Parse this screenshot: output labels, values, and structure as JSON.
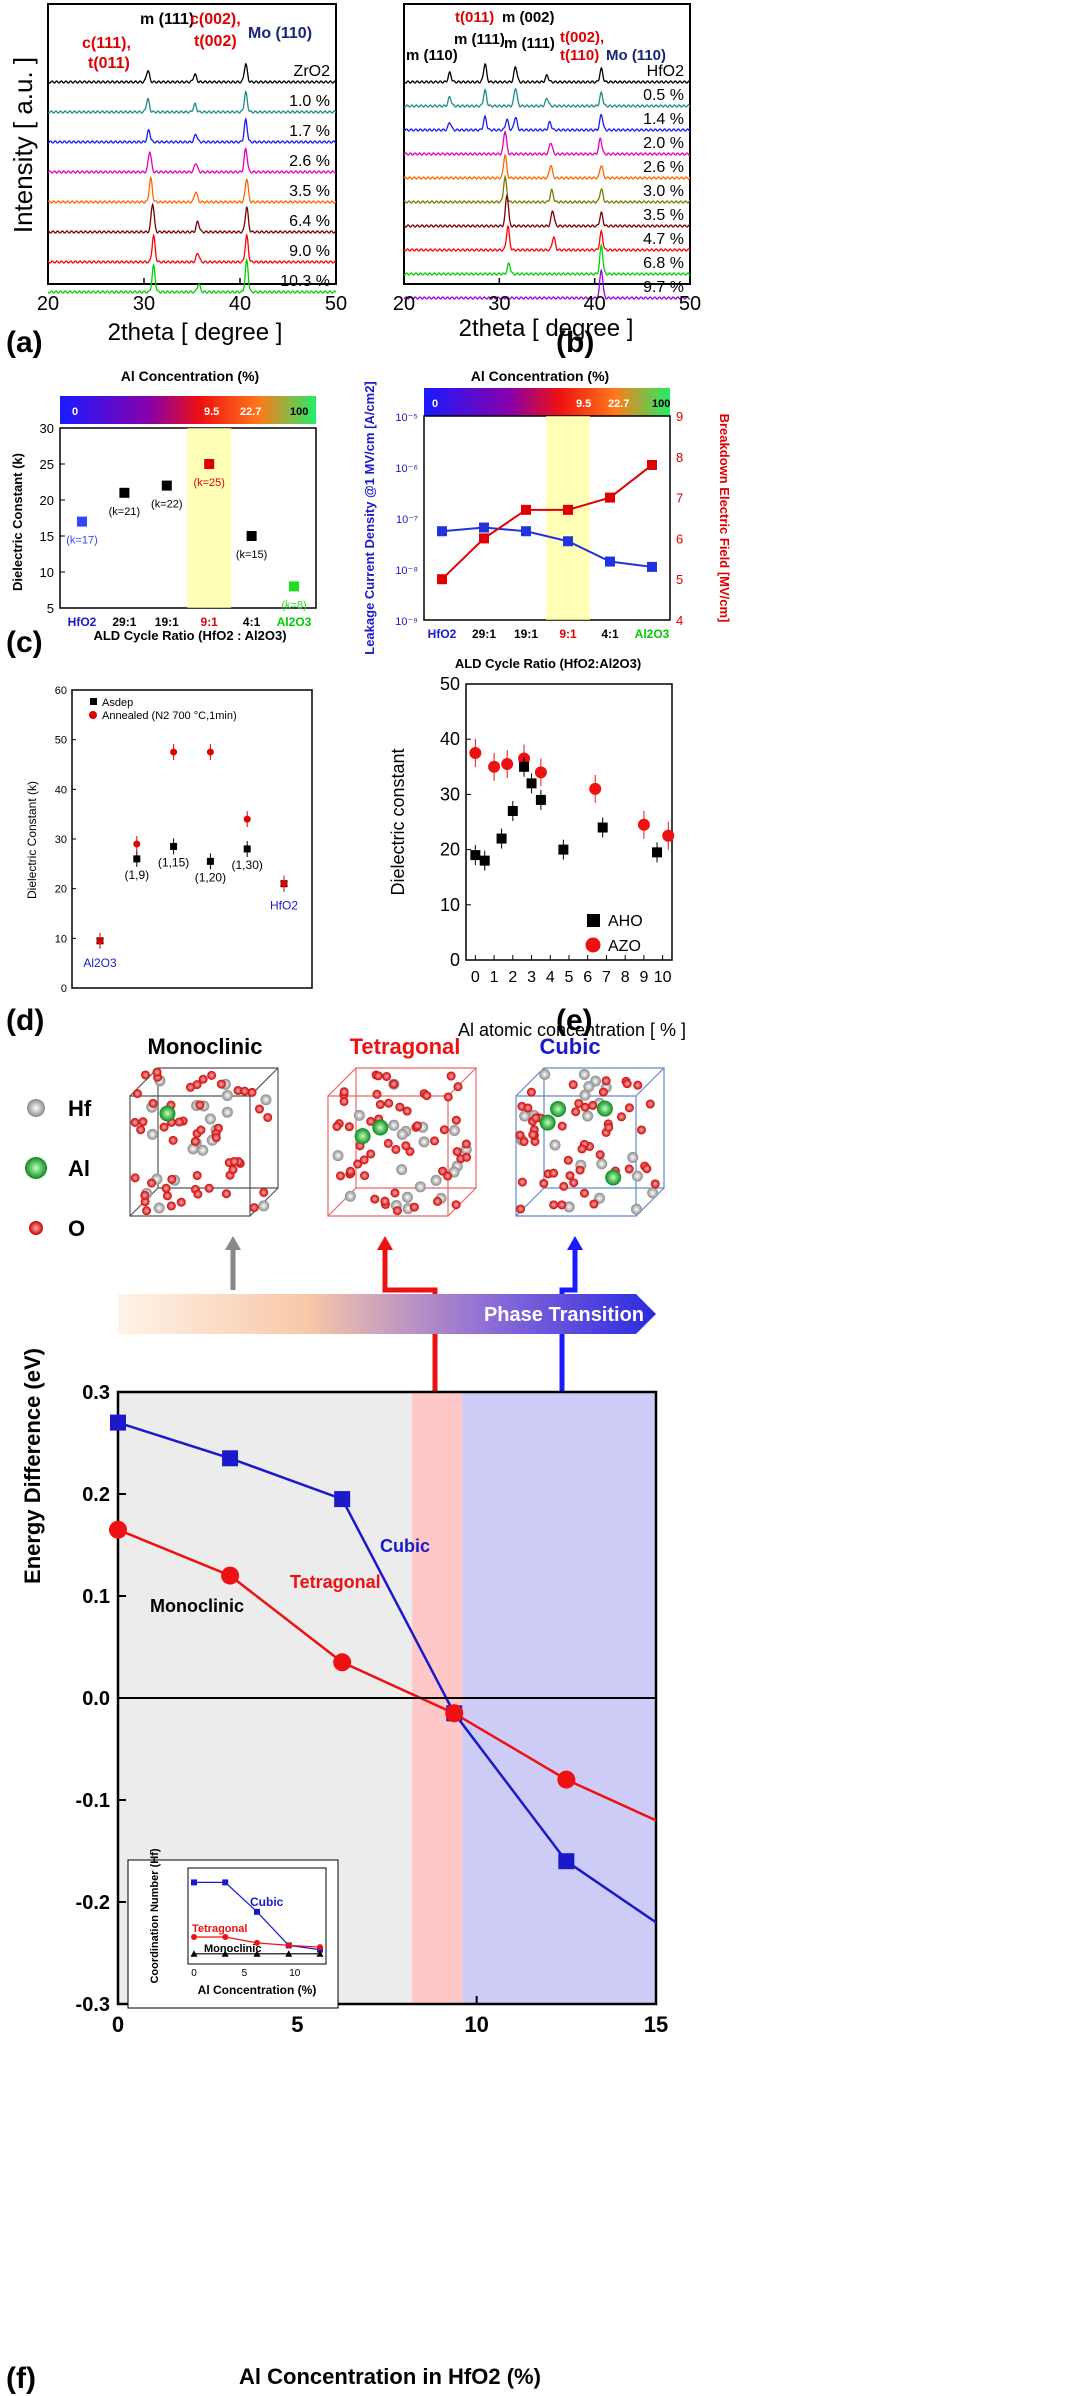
{
  "panel_labels": [
    "(a)",
    "(b)",
    "(c)",
    "(d)",
    "(e)",
    "(f)"
  ],
  "chart_data": [
    {
      "id": "a",
      "type": "line",
      "xlabel": "2theta [ degree ]",
      "ylabel": "Intensity [ a.u. ]",
      "xlim": [
        20,
        50
      ],
      "xticks": [
        20,
        30,
        40,
        50
      ],
      "series": [
        {
          "name": "ZrO2",
          "color": "#000000",
          "peaks": [
            [
              30.4,
              0.45
            ],
            [
              35.3,
              0.3
            ],
            [
              40.6,
              0.7
            ]
          ]
        },
        {
          "name": "1.0 %",
          "color": "#1f8a8a",
          "peaks": [
            [
              30.4,
              0.5
            ],
            [
              35.3,
              0.3
            ],
            [
              40.6,
              0.75
            ]
          ]
        },
        {
          "name": "1.7 %",
          "color": "#1a1aff",
          "peaks": [
            [
              30.5,
              0.45
            ],
            [
              35.4,
              0.3
            ],
            [
              40.6,
              0.85
            ]
          ]
        },
        {
          "name": "2.6 %",
          "color": "#e000c0",
          "peaks": [
            [
              30.6,
              0.8
            ],
            [
              35.4,
              0.35
            ],
            [
              40.6,
              0.9
            ]
          ]
        },
        {
          "name": "3.5 %",
          "color": "#ff6600",
          "peaks": [
            [
              30.7,
              0.9
            ],
            [
              35.4,
              0.4
            ],
            [
              40.7,
              0.9
            ]
          ]
        },
        {
          "name": "6.4 %",
          "color": "#7a0000",
          "peaks": [
            [
              30.9,
              1.1
            ],
            [
              35.6,
              0.4
            ],
            [
              40.7,
              0.95
            ]
          ]
        },
        {
          "name": "9.0 %",
          "color": "#ff0000",
          "peaks": [
            [
              31.0,
              1.0
            ],
            [
              35.6,
              0.35
            ],
            [
              40.7,
              1.0
            ]
          ]
        },
        {
          "name": "10.3 %",
          "color": "#00d000",
          "peaks": [
            [
              31.0,
              1.0
            ],
            [
              35.7,
              0.3
            ],
            [
              40.7,
              1.2
            ]
          ]
        }
      ],
      "annotations": [
        {
          "text": "m (111)",
          "color": "#000000"
        },
        {
          "text": "c(002),",
          "color": "#e00000"
        },
        {
          "text": "t(002)",
          "color": "#e00000"
        },
        {
          "text": "c(111),",
          "color": "#e00000"
        },
        {
          "text": "t(011)",
          "color": "#e00000"
        },
        {
          "text": "Mo (110)",
          "color": "#1a237e"
        }
      ]
    },
    {
      "id": "b",
      "type": "line",
      "xlabel": "2theta [ degree ]",
      "ylabel": "",
      "xlim": [
        20,
        50
      ],
      "xticks": [
        20,
        30,
        40,
        50
      ],
      "series": [
        {
          "name": "HfO2",
          "color": "#000000",
          "peaks": [
            [
              24.8,
              0.35
            ],
            [
              28.5,
              0.7
            ],
            [
              31.7,
              0.6
            ],
            [
              35.0,
              0.25
            ],
            [
              40.7,
              0.5
            ]
          ]
        },
        {
          "name": "0.5 %",
          "color": "#1f8a8a",
          "peaks": [
            [
              24.8,
              0.35
            ],
            [
              28.5,
              0.6
            ],
            [
              31.7,
              0.7
            ],
            [
              35.0,
              0.3
            ],
            [
              40.7,
              0.5
            ]
          ]
        },
        {
          "name": "1.4 %",
          "color": "#1a1aff",
          "peaks": [
            [
              24.8,
              0.3
            ],
            [
              28.5,
              0.5
            ],
            [
              30.8,
              0.4
            ],
            [
              31.7,
              0.5
            ],
            [
              35.3,
              0.3
            ],
            [
              40.7,
              0.6
            ]
          ]
        },
        {
          "name": "2.0 %",
          "color": "#e000c0",
          "peaks": [
            [
              30.6,
              0.9
            ],
            [
              35.4,
              0.45
            ],
            [
              40.6,
              0.6
            ]
          ]
        },
        {
          "name": "2.6 %",
          "color": "#ff6600",
          "peaks": [
            [
              30.6,
              0.9
            ],
            [
              35.4,
              0.5
            ],
            [
              40.7,
              0.5
            ]
          ]
        },
        {
          "name": "3.0 %",
          "color": "#7a7a00",
          "peaks": [
            [
              30.6,
              0.95
            ],
            [
              35.5,
              0.45
            ],
            [
              40.7,
              0.5
            ]
          ]
        },
        {
          "name": "3.5 %",
          "color": "#7a0000",
          "peaks": [
            [
              30.8,
              1.2
            ],
            [
              35.6,
              0.6
            ],
            [
              40.7,
              0.5
            ]
          ]
        },
        {
          "name": "4.7 %",
          "color": "#ff0000",
          "peaks": [
            [
              30.9,
              0.9
            ],
            [
              35.7,
              0.5
            ],
            [
              40.7,
              0.7
            ]
          ]
        },
        {
          "name": "6.8 %",
          "color": "#00d000",
          "peaks": [
            [
              31.0,
              0.4
            ],
            [
              40.7,
              1.1
            ]
          ]
        },
        {
          "name": "9.7 %",
          "color": "#a000e0",
          "peaks": [
            [
              40.7,
              1.1
            ]
          ]
        }
      ],
      "annotations": [
        {
          "text": "t(011)",
          "color": "#e00000"
        },
        {
          "text": "m (002)",
          "color": "#000000"
        },
        {
          "text": "m (111)",
          "color": "#000000"
        },
        {
          "text": "m (110)",
          "color": "#000000"
        },
        {
          "text": "m (111)",
          "color": "#000000"
        },
        {
          "text": "t(002),",
          "color": "#e00000"
        },
        {
          "text": "t(110)",
          "color": "#e00000"
        },
        {
          "text": "Mo (110)",
          "color": "#1a237e"
        }
      ]
    },
    {
      "id": "c-left",
      "type": "scatter",
      "title": "Al Concentration (%)",
      "colorbar_labels": [
        "0",
        "9.5",
        "22.7",
        "100"
      ],
      "xlabel": "ALD Cycle Ratio (HfO2 : Al2O3)",
      "ylabel": "Dielectric Constant (k)",
      "ylim": [
        5,
        30
      ],
      "yticks": [
        5,
        10,
        15,
        20,
        25,
        30
      ],
      "categories": [
        "HfO2",
        "29:1",
        "19:1",
        "9:1",
        "4:1",
        "Al2O3"
      ],
      "category_colors": [
        "#1a1acc",
        "#000000",
        "#000000",
        "#e00000",
        "#000000",
        "#00cc00"
      ],
      "values": [
        17,
        21,
        22,
        25,
        15,
        8
      ],
      "errors": [
        0.6,
        0.6,
        0.6,
        0.6,
        0.4,
        0.5
      ],
      "point_colors": [
        "#3344ff",
        "#000000",
        "#000000",
        "#e00000",
        "#000000",
        "#22dd22"
      ],
      "point_labels": [
        "(k=17)",
        "(k=21)",
        "(k=22)",
        "(k=25)",
        "(k=15)",
        "(k=8)"
      ],
      "highlight_category": "9:1"
    },
    {
      "id": "c-right",
      "type": "line",
      "title": "Al Concentration (%)",
      "colorbar_labels": [
        "0",
        "9.5",
        "22.7",
        "100"
      ],
      "xlabel": "ALD Cycle Ratio (HfO2:Al2O3)",
      "ylabel": "Leakage Current Density @1 MV/cm [A/cm2]",
      "ylabel_right": "Breakdown Electric Field [MV/cm]",
      "categories": [
        "HfO2",
        "29:1",
        "19:1",
        "9:1",
        "4:1",
        "Al2O3"
      ],
      "y_log_range_exp": [
        -9,
        -5
      ],
      "y_right_lim": [
        4,
        9
      ],
      "series": [
        {
          "name": "Leakage Current Density",
          "color": "#2233dd",
          "values": [
            5.5e-08,
            6.5e-08,
            5.5e-08,
            3.5e-08,
            1.4e-08,
            1.1e-08
          ]
        },
        {
          "name": "Breakdown Electric Field",
          "color": "#e00000",
          "values": [
            5.0,
            6.0,
            6.7,
            6.7,
            7.0,
            7.8
          ]
        }
      ],
      "highlight_category": "9:1"
    },
    {
      "id": "d",
      "type": "scatter",
      "ylabel": "Dielectric Constant (k)",
      "ylim": [
        0,
        60
      ],
      "yticks": [
        0,
        10,
        20,
        30,
        40,
        50,
        60
      ],
      "legend": [
        "Asdep",
        "Annealed (N2 700 °C,1min)"
      ],
      "categories": [
        "Al2O3",
        "(1,9)",
        "(1,15)",
        "(1,20)",
        "(1,30)",
        "HfO2"
      ],
      "series": [
        {
          "name": "Asdep",
          "color": "#000000",
          "values": [
            9.5,
            26,
            28.5,
            25.5,
            28,
            21
          ]
        },
        {
          "name": "Annealed",
          "color": "#e00000",
          "values": [
            9.5,
            29,
            47.5,
            47.5,
            34,
            21
          ]
        }
      ]
    },
    {
      "id": "e",
      "type": "scatter",
      "xlabel": "Al atomic concentration [ % ]",
      "ylabel": "Dielectric constant",
      "xlim": [
        -0.5,
        10.5
      ],
      "ylim": [
        0,
        50
      ],
      "xticks": [
        0,
        1,
        2,
        3,
        4,
        5,
        6,
        7,
        8,
        9,
        10
      ],
      "yticks": [
        0,
        10,
        20,
        30,
        40,
        50
      ],
      "series": [
        {
          "name": "AHO",
          "color": "#000000",
          "x": [
            0,
            0.5,
            1.4,
            2.0,
            2.6,
            3.0,
            3.5,
            4.7,
            6.8,
            9.7
          ],
          "y": [
            19,
            18,
            22,
            27,
            35,
            32,
            29,
            20,
            24,
            19.5
          ]
        },
        {
          "name": "AZO",
          "color": "#ee1111",
          "x": [
            0,
            1.0,
            1.7,
            2.6,
            3.5,
            6.4,
            9.0,
            10.3
          ],
          "y": [
            37.5,
            35,
            35.5,
            36.5,
            34,
            31,
            24.5,
            22.5
          ]
        }
      ]
    },
    {
      "id": "f",
      "type": "line",
      "xlabel": "Al Concentration in HfO2 (%)",
      "ylabel": "Energy Difference (eV)",
      "xlim": [
        0,
        15
      ],
      "ylim": [
        -0.3,
        0.3
      ],
      "xticks": [
        0,
        5,
        10,
        15
      ],
      "yticks": [
        -0.3,
        -0.2,
        -0.1,
        0.0,
        0.1,
        0.2,
        0.3
      ],
      "series": [
        {
          "name": "Cubic",
          "color": "#1a1acc",
          "x": [
            0,
            3.125,
            6.25,
            9.375,
            12.5,
            15
          ],
          "y": [
            0.27,
            0.235,
            0.195,
            -0.015,
            -0.16,
            -0.22
          ]
        },
        {
          "name": "Tetragonal",
          "color": "#ee1111",
          "x": [
            0,
            3.125,
            6.25,
            9.375,
            12.5,
            15
          ],
          "y": [
            0.165,
            0.12,
            0.035,
            -0.015,
            -0.08,
            -0.12
          ]
        },
        {
          "name": "Monoclinic",
          "color": "#000000",
          "x": [
            0,
            15
          ],
          "y": [
            0,
            0
          ]
        }
      ],
      "regions": [
        "Monoclinic",
        "Tetragonal",
        "Cubic"
      ],
      "banner": "Phase Transition",
      "legend_atoms": [
        "Hf",
        "Al",
        "O"
      ],
      "inset": {
        "ylabel": "Coordination Number (Hf)",
        "xlabel": "Al Concentration (%)",
        "xticks": [
          0,
          5,
          10
        ],
        "series": [
          {
            "name": "Cubic",
            "color": "#1a1acc",
            "x": [
              0,
              3.1,
              6.25,
              9.4,
              12.5
            ],
            "y": [
              0.9,
              0.9,
              0.55,
              0.15,
              0.1
            ]
          },
          {
            "name": "Tetragonal",
            "color": "#ee1111",
            "x": [
              0,
              3.1,
              6.25,
              9.4,
              12.5
            ],
            "y": [
              0.25,
              0.25,
              0.18,
              0.15,
              0.13
            ]
          },
          {
            "name": "Monoclinic",
            "color": "#000000",
            "x": [
              0,
              3.1,
              6.25,
              9.4,
              12.5
            ],
            "y": [
              0.05,
              0.05,
              0.05,
              0.05,
              0.05
            ]
          }
        ]
      }
    }
  ]
}
